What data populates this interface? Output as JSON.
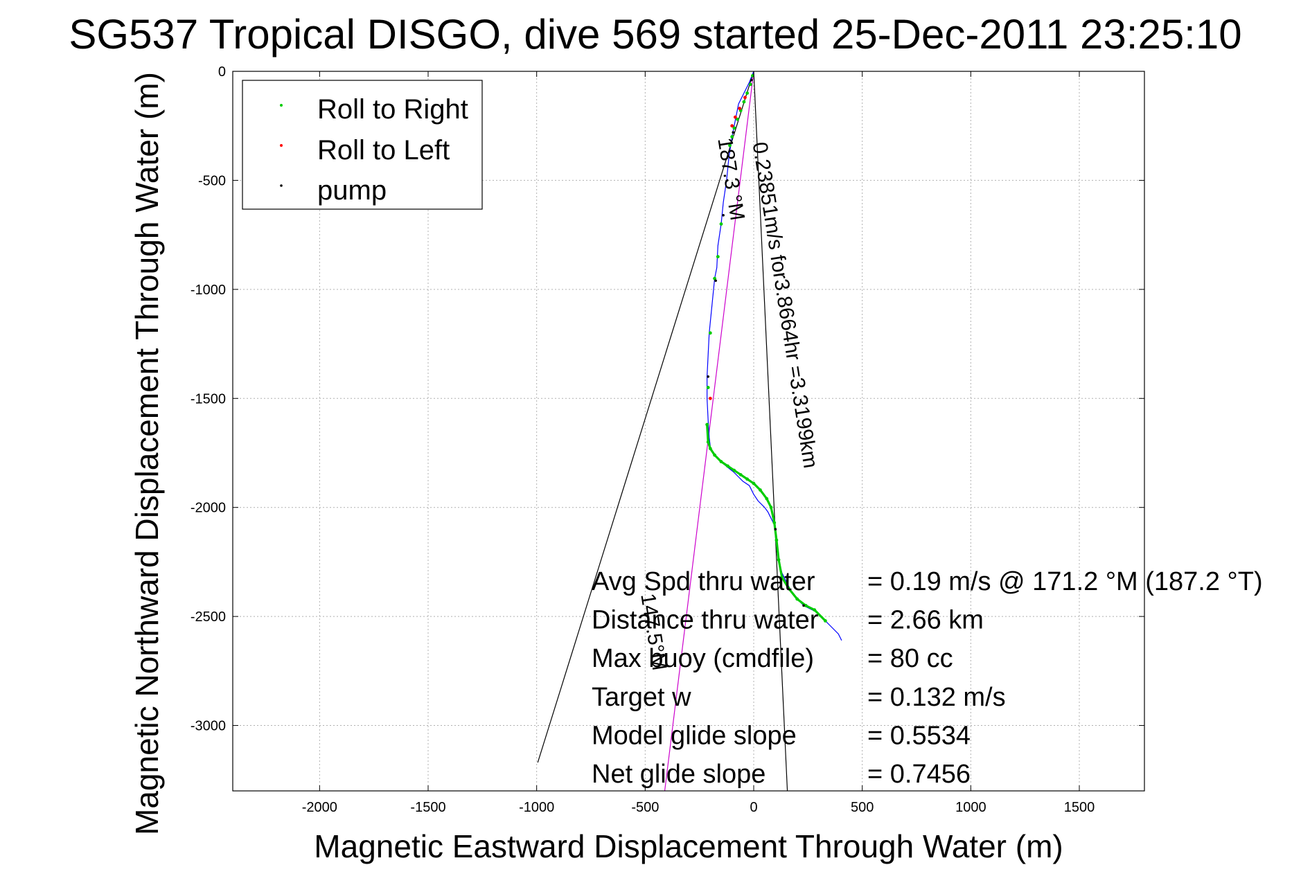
{
  "chart_data": {
    "type": "line",
    "title": "SG537 Tropical DISGO, dive 569 started 25-Dec-2011 23:25:10",
    "xlabel": "Magnetic Eastward Displacement Through Water (m)",
    "ylabel": "Magnetic Northward Displacement Through Water (m)",
    "xlim": [
      -2400,
      1800
    ],
    "ylim": [
      -3300,
      0
    ],
    "xticks": [
      -2000,
      -1500,
      -1000,
      -500,
      0,
      500,
      1000,
      1500
    ],
    "yticks": [
      0,
      -500,
      -1000,
      -1500,
      -2000,
      -2500,
      -3000
    ],
    "grid": true,
    "legend": {
      "placement": "top-left",
      "entries": [
        {
          "label": "Roll to Right",
          "color": "#00cc00"
        },
        {
          "label": "Roll to Left",
          "color": "#ff0000"
        },
        {
          "label": "pump",
          "color": "#000000"
        }
      ]
    },
    "track": {
      "color": "#0000ff",
      "x": [
        0,
        -20,
        -45,
        -70,
        -80,
        -90,
        -100,
        -115,
        -125,
        -140,
        -150,
        -165,
        -170,
        -180,
        -185,
        -195,
        -205,
        -210,
        -215,
        -215,
        -210,
        -205,
        -200,
        -190,
        -180,
        -160,
        -140,
        -115,
        -90,
        -70,
        -50,
        -20,
        0,
        20,
        35,
        50,
        65,
        80,
        95,
        100,
        105,
        110,
        120,
        130,
        145,
        155,
        170,
        190,
        210,
        230,
        250,
        270,
        290,
        310,
        330,
        360,
        390,
        405
      ],
      "y": [
        0,
        -50,
        -100,
        -150,
        -200,
        -250,
        -300,
        -400,
        -500,
        -600,
        -700,
        -800,
        -900,
        -950,
        -1000,
        -1100,
        -1200,
        -1300,
        -1400,
        -1500,
        -1600,
        -1680,
        -1720,
        -1745,
        -1760,
        -1780,
        -1800,
        -1820,
        -1840,
        -1860,
        -1880,
        -1900,
        -1940,
        -1970,
        -1985,
        -2000,
        -2020,
        -2050,
        -2080,
        -2130,
        -2180,
        -2220,
        -2260,
        -2300,
        -2330,
        -2350,
        -2380,
        -2410,
        -2430,
        -2450,
        -2460,
        -2470,
        -2480,
        -2500,
        -2520,
        -2550,
        -2580,
        -2610
      ]
    },
    "roll_to_right": {
      "x": [
        -5,
        -15,
        -30,
        -45,
        -60,
        -75,
        -90,
        -100,
        -110,
        -150,
        -165,
        -180,
        -200,
        -210,
        -215,
        -210,
        -200,
        -180,
        -150,
        -120,
        -90,
        -60,
        -30,
        0,
        30,
        60,
        80,
        95,
        105,
        115,
        130,
        160,
        200,
        240,
        280,
        330
      ],
      "y": [
        -20,
        -60,
        -100,
        -140,
        -180,
        -220,
        -260,
        -300,
        -340,
        -700,
        -850,
        -950,
        -1200,
        -1450,
        -1620,
        -1700,
        -1730,
        -1760,
        -1790,
        -1810,
        -1830,
        -1850,
        -1870,
        -1890,
        -1920,
        -1960,
        -2000,
        -2070,
        -2150,
        -2240,
        -2320,
        -2370,
        -2420,
        -2450,
        -2470,
        -2520
      ]
    },
    "roll_to_left": {
      "x": [
        -40,
        -65,
        -85,
        -100,
        -200
      ],
      "y": [
        -120,
        -170,
        -210,
        -250,
        -1500
      ]
    },
    "pump": {
      "x": [
        -10,
        -95,
        -140,
        -175,
        -210,
        100,
        230
      ],
      "y": [
        -40,
        -280,
        -660,
        -960,
        -1400,
        -2100,
        -2450
      ]
    },
    "guide_lines": [
      {
        "color": "#000000",
        "x": [
          0,
          -995
        ],
        "y": [
          0,
          -3170
        ]
      },
      {
        "color": "#000000",
        "x": [
          0,
          155
        ],
        "y": [
          0,
          -3300
        ]
      },
      {
        "color": "#cc00cc",
        "x": [
          0,
          -410
        ],
        "y": [
          0,
          -3300
        ]
      }
    ],
    "line_labels": [
      {
        "text": "0.23851m/s for3.8664hr =3.3199km",
        "x": -5,
        "y": -330,
        "rotate": 81
      },
      {
        "text": "187.3 °M",
        "x": -165,
        "y": -310,
        "rotate": 81
      },
      {
        "text": "147.5°M",
        "x": -520,
        "y": -2400,
        "rotate": 81
      }
    ],
    "summary": [
      {
        "label": "Avg Spd thru water",
        "value": "=  0.19 m/s @ 171.2 °M (187.2 °T)"
      },
      {
        "label": "Distance thru water",
        "value": "=  2.66 km"
      },
      {
        "label": "Max buoy (cmdfile)",
        "value": "= 80 cc"
      },
      {
        "label": "Target w",
        "value": "= 0.132 m/s"
      },
      {
        "label": "Model glide slope",
        "value": "= 0.5534"
      },
      {
        "label": "Net glide slope",
        "value": "= 0.7456"
      }
    ]
  }
}
